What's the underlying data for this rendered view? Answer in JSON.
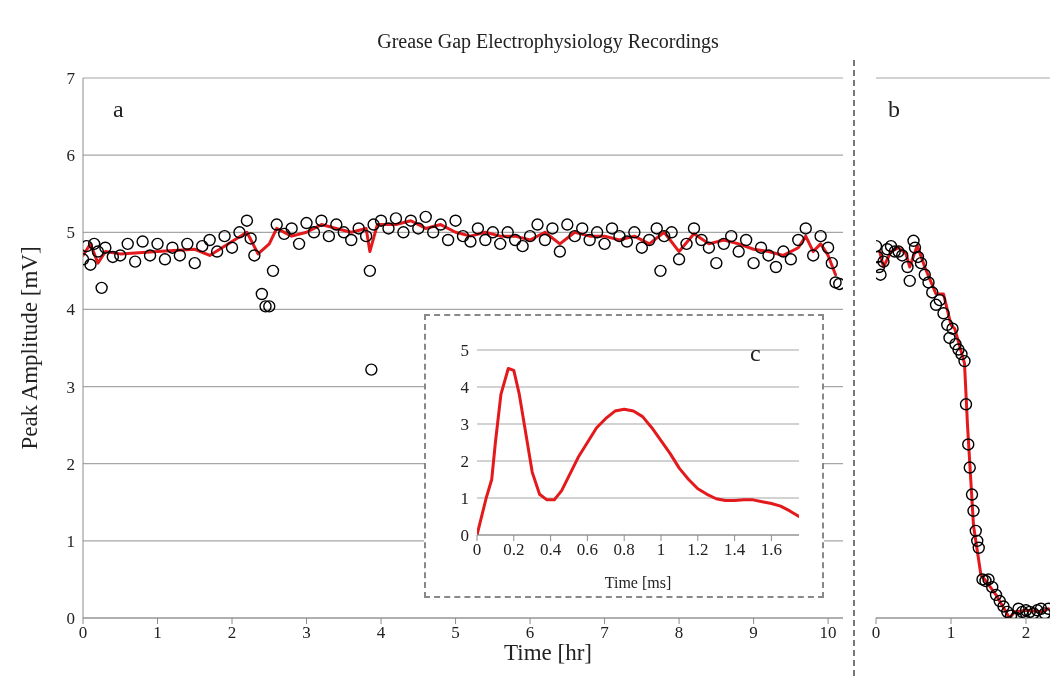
{
  "chart_data": [
    {
      "type": "scatter",
      "title": "Grease Gap Electrophysiology Recordings",
      "xlabel": "Time [hr]",
      "ylabel": "Peak Amplitude [mV]",
      "annotations": [
        "a"
      ],
      "xlim": [
        0,
        10.2
      ],
      "xticks": [
        0,
        1,
        2,
        3,
        4,
        5,
        6,
        7,
        8,
        9,
        10
      ],
      "ylim": [
        0,
        7
      ],
      "yticks": [
        0,
        1,
        2,
        3,
        4,
        5,
        6,
        7
      ],
      "grid": "y",
      "series": [
        {
          "marker": "circle",
          "color": "#000000",
          "x": [
            0,
            0.05,
            0.1,
            0.15,
            0.2,
            0.25,
            0.3,
            0.4,
            0.5,
            0.6,
            0.7,
            0.8,
            0.9,
            1.0,
            1.1,
            1.2,
            1.3,
            1.4,
            1.5,
            1.6,
            1.7,
            1.8,
            1.9,
            2.0,
            2.1,
            2.2,
            2.25,
            2.3,
            2.4,
            2.45,
            2.5,
            2.55,
            2.6,
            2.7,
            2.8,
            2.9,
            3.0,
            3.1,
            3.2,
            3.3,
            3.4,
            3.5,
            3.6,
            3.7,
            3.8,
            3.85,
            3.87,
            3.9,
            4.0,
            4.1,
            4.2,
            4.3,
            4.4,
            4.5,
            4.6,
            4.7,
            4.8,
            4.9,
            5.0,
            5.1,
            5.2,
            5.3,
            5.4,
            5.5,
            5.6,
            5.7,
            5.8,
            5.9,
            6.0,
            6.1,
            6.2,
            6.3,
            6.4,
            6.5,
            6.6,
            6.7,
            6.8,
            6.9,
            7.0,
            7.1,
            7.2,
            7.3,
            7.4,
            7.5,
            7.6,
            7.7,
            7.75,
            7.8,
            7.9,
            8.0,
            8.1,
            8.2,
            8.3,
            8.4,
            8.5,
            8.6,
            8.7,
            8.8,
            8.9,
            9.0,
            9.1,
            9.2,
            9.3,
            9.4,
            9.5,
            9.6,
            9.7,
            9.8,
            9.9,
            10.0,
            10.05,
            10.1,
            10.15
          ],
          "values": [
            4.65,
            4.82,
            4.58,
            4.85,
            4.75,
            4.28,
            4.8,
            4.68,
            4.7,
            4.85,
            4.62,
            4.88,
            4.7,
            4.85,
            4.65,
            4.8,
            4.7,
            4.85,
            4.6,
            4.82,
            4.9,
            4.75,
            4.95,
            4.8,
            5.0,
            5.15,
            4.92,
            4.7,
            4.2,
            4.04,
            4.04,
            4.5,
            5.1,
            4.98,
            5.05,
            4.85,
            5.12,
            5.0,
            5.15,
            4.95,
            5.1,
            5.0,
            4.9,
            5.05,
            4.95,
            4.5,
            3.22,
            5.1,
            5.15,
            5.05,
            5.18,
            5.0,
            5.15,
            5.05,
            5.2,
            5.0,
            5.1,
            4.9,
            5.15,
            4.95,
            4.88,
            5.05,
            4.9,
            5.0,
            4.85,
            5.0,
            4.9,
            4.82,
            4.95,
            5.1,
            4.9,
            5.05,
            4.75,
            5.1,
            4.95,
            5.05,
            4.9,
            5.0,
            4.85,
            5.05,
            4.95,
            4.88,
            5.0,
            4.8,
            4.9,
            5.05,
            4.5,
            4.95,
            5.0,
            4.65,
            4.85,
            5.05,
            4.9,
            4.8,
            4.6,
            4.85,
            4.95,
            4.75,
            4.9,
            4.6,
            4.8,
            4.7,
            4.55,
            4.75,
            4.65,
            4.9,
            5.05,
            4.7,
            4.95,
            4.8,
            4.6,
            4.35,
            4.33
          ]
        },
        {
          "type": "line",
          "color": "#e3191c",
          "x": [
            0,
            0.1,
            0.2,
            0.3,
            0.5,
            1.0,
            1.5,
            1.7,
            2.0,
            2.2,
            2.35,
            2.5,
            2.6,
            2.8,
            3.0,
            3.2,
            3.4,
            3.6,
            3.8,
            3.85,
            3.95,
            4.2,
            4.4,
            4.6,
            4.8,
            5.0,
            5.2,
            5.4,
            5.6,
            5.8,
            6.0,
            6.2,
            6.4,
            6.6,
            6.8,
            7.0,
            7.2,
            7.4,
            7.6,
            7.8,
            8.0,
            8.2,
            8.4,
            8.6,
            8.8,
            9.0,
            9.2,
            9.4,
            9.6,
            9.7,
            9.8,
            9.9,
            10.0,
            10.1
          ],
          "values": [
            4.7,
            4.85,
            4.6,
            4.75,
            4.72,
            4.75,
            4.78,
            4.7,
            4.88,
            5.0,
            4.72,
            4.85,
            5.05,
            4.95,
            5.0,
            5.1,
            5.05,
            5.0,
            5.05,
            4.75,
            5.1,
            5.1,
            5.15,
            5.05,
            5.1,
            5.0,
            4.95,
            5.0,
            4.95,
            4.95,
            4.9,
            5.0,
            4.85,
            5.0,
            4.95,
            4.95,
            4.9,
            4.95,
            4.85,
            5.0,
            4.75,
            4.98,
            4.85,
            4.9,
            4.85,
            4.78,
            4.75,
            4.7,
            4.8,
            4.95,
            4.75,
            4.85,
            4.7,
            4.45
          ]
        }
      ]
    },
    {
      "type": "scatter",
      "annotations": [
        "b"
      ],
      "xlim": [
        0,
        2.32
      ],
      "xticks": [
        0,
        1,
        2
      ],
      "ylim": [
        0,
        7
      ],
      "yticks": [
        0,
        1,
        2,
        3,
        4,
        5,
        6,
        7
      ],
      "grid": "y",
      "tick_labels": "x",
      "series": [
        {
          "marker": "circle",
          "color": "#000000",
          "x": [
            0,
            0.02,
            0.04,
            0.06,
            0.1,
            0.15,
            0.2,
            0.25,
            0.3,
            0.35,
            0.42,
            0.45,
            0.5,
            0.52,
            0.56,
            0.6,
            0.65,
            0.7,
            0.75,
            0.8,
            0.85,
            0.9,
            0.95,
            0.98,
            1.02,
            1.06,
            1.1,
            1.14,
            1.18,
            1.2,
            1.23,
            1.25,
            1.28,
            1.3,
            1.33,
            1.35,
            1.37,
            1.42,
            1.46,
            1.5,
            1.55,
            1.6,
            1.65,
            1.7,
            1.75,
            1.8,
            1.87,
            1.9,
            1.95,
            2.0,
            2.05,
            2.1,
            2.15,
            2.2,
            2.25,
            2.3
          ],
          "values": [
            4.82,
            4.68,
            4.55,
            4.45,
            4.62,
            4.78,
            4.82,
            4.75,
            4.75,
            4.7,
            4.55,
            4.37,
            4.89,
            4.8,
            4.68,
            4.6,
            4.45,
            4.35,
            4.22,
            4.06,
            4.12,
            3.95,
            3.8,
            3.63,
            3.75,
            3.55,
            3.48,
            3.42,
            3.33,
            2.77,
            2.25,
            1.95,
            1.6,
            1.39,
            1.13,
            1.0,
            0.91,
            0.5,
            0.48,
            0.5,
            0.4,
            0.3,
            0.22,
            0.15,
            0.08,
            0.03,
            0,
            0.12,
            0.08,
            0.1,
            0.08,
            0.06,
            0.1,
            0.12,
            0.06,
            0.12
          ]
        },
        {
          "type": "line",
          "color": "#e3191c",
          "x": [
            0.05,
            0.1,
            0.2,
            0.3,
            0.4,
            0.45,
            0.55,
            0.65,
            0.8,
            0.9,
            1.0,
            1.05,
            1.18,
            1.22,
            1.3,
            1.4,
            1.45,
            1.6,
            1.78,
            1.85,
            2.0,
            2.2,
            2.3
          ],
          "values": [
            4.75,
            4.55,
            4.75,
            4.8,
            4.72,
            4.55,
            4.83,
            4.55,
            4.2,
            4.2,
            3.8,
            3.75,
            3.3,
            2.5,
            1.2,
            0.55,
            0.5,
            0.3,
            0,
            0.08,
            0.1,
            0.08,
            0.12
          ]
        }
      ]
    },
    {
      "type": "line",
      "xlabel": "Time [ms]",
      "annotations": [
        "c"
      ],
      "xlim": [
        0,
        1.75
      ],
      "xticks": [
        0,
        0.2,
        0.4,
        0.6,
        0.8,
        1,
        1.2,
        1.4,
        1.6
      ],
      "ylim": [
        0,
        5
      ],
      "yticks": [
        0,
        1,
        2,
        3,
        4,
        5
      ],
      "grid": "y",
      "series": [
        {
          "color": "#e3191c",
          "x": [
            0,
            0.05,
            0.08,
            0.1,
            0.13,
            0.17,
            0.2,
            0.23,
            0.27,
            0.3,
            0.34,
            0.38,
            0.42,
            0.46,
            0.5,
            0.55,
            0.6,
            0.65,
            0.7,
            0.75,
            0.8,
            0.85,
            0.9,
            0.95,
            1.0,
            1.05,
            1.1,
            1.15,
            1.2,
            1.25,
            1.3,
            1.35,
            1.4,
            1.45,
            1.5,
            1.55,
            1.6,
            1.65,
            1.7,
            1.75
          ],
          "values": [
            0,
            1.0,
            1.5,
            2.5,
            3.8,
            4.5,
            4.45,
            3.8,
            2.6,
            1.7,
            1.1,
            0.95,
            0.95,
            1.2,
            1.6,
            2.1,
            2.5,
            2.9,
            3.15,
            3.35,
            3.4,
            3.35,
            3.2,
            2.9,
            2.55,
            2.2,
            1.8,
            1.5,
            1.25,
            1.1,
            0.98,
            0.93,
            0.93,
            0.95,
            0.95,
            0.9,
            0.85,
            0.78,
            0.65,
            0.5
          ]
        }
      ]
    }
  ]
}
